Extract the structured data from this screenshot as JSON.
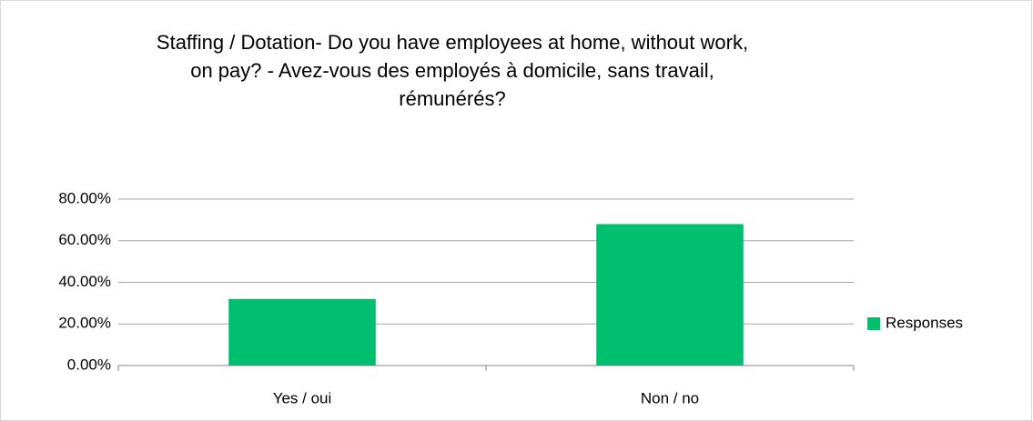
{
  "chart_data": {
    "type": "bar",
    "title": [
      "Staffing / Dotation- Do you have employees at home, without work,",
      "on pay? - Avez-vous des employés à domicile, sans travail,",
      "rémunérés?"
    ],
    "categories": [
      "Yes / oui",
      "Non / no"
    ],
    "series": [
      {
        "name": "Responses",
        "color": "#00c070",
        "values": [
          32,
          68
        ]
      }
    ],
    "ylim": [
      0,
      80
    ],
    "yticks": [
      {
        "value": 0,
        "label": "0.00%"
      },
      {
        "value": 20,
        "label": "20.00%"
      },
      {
        "value": 40,
        "label": "40.00%"
      },
      {
        "value": 60,
        "label": "60.00%"
      },
      {
        "value": 80,
        "label": "80.00%"
      }
    ],
    "grid": true,
    "legend": "right"
  }
}
